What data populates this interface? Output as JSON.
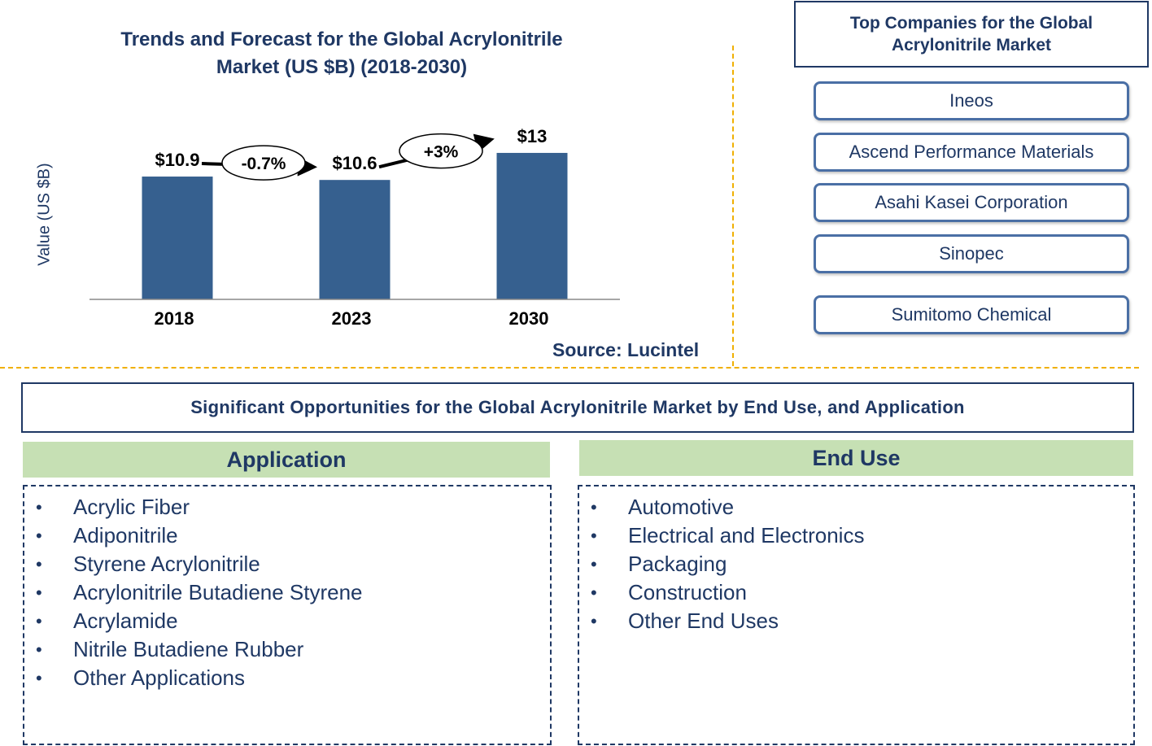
{
  "chart_data": {
    "type": "bar",
    "title": "Trends and Forecast for the Global Acrylonitrile Market (US $B) (2018-2030)",
    "title_lines": [
      "Trends and Forecast for the Global Acrylonitrile",
      "Market (US $B) (2018-2030)"
    ],
    "ylabel": "Value (US $B)",
    "categories": [
      "2018",
      "2023",
      "2030"
    ],
    "values": [
      10.9,
      10.6,
      13
    ],
    "value_labels": [
      "$10.9",
      "$10.6",
      "$13"
    ],
    "growth": [
      {
        "from": "2018",
        "to": "2023",
        "label": "-0.7%"
      },
      {
        "from": "2023",
        "to": "2030",
        "label": "+3%"
      }
    ],
    "bar_color": "#36608f",
    "grid": false
  },
  "source": "Source: Lucintel",
  "companies": {
    "title": "Top Companies for the Global Acrylonitrile Market",
    "title_lines": [
      "Top Companies for the Global",
      "Acrylonitrile Market"
    ],
    "items": [
      "Ineos",
      "Ascend Performance Materials",
      "Asahi Kasei Corporation",
      "Sinopec",
      "Sumitomo Chemical"
    ]
  },
  "opportunities": {
    "title": "Significant Opportunities for the Global Acrylonitrile Market by End Use, and Application"
  },
  "application": {
    "header": "Application",
    "items": [
      "Acrylic Fiber",
      "Adiponitrile",
      "Styrene Acrylonitrile",
      "Acrylonitrile Butadiene Styrene",
      "Acrylamide",
      "Nitrile Butadiene Rubber",
      "Other Applications"
    ]
  },
  "end_use": {
    "header": "End Use",
    "items": [
      "Automotive",
      "Electrical and Electronics",
      "Packaging",
      "Construction",
      "Other End Uses"
    ]
  },
  "colors": {
    "text": "#1f3864",
    "bar": "#36608f",
    "divider": "#f0b000",
    "segment_header_bg": "#c6e0b4",
    "company_border": "#4a6fa5"
  }
}
